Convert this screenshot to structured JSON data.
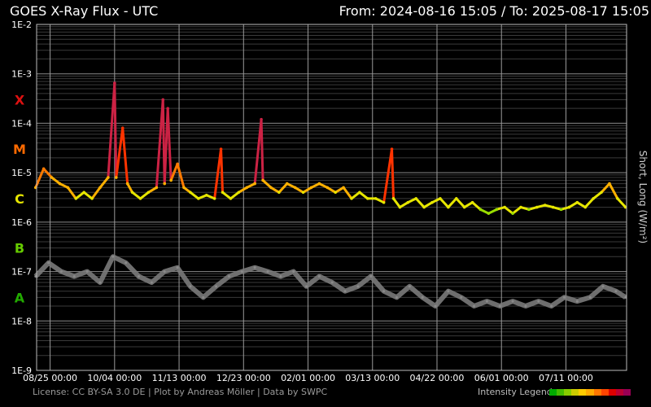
{
  "header": {
    "title": "GOES X-Ray Flux - UTC",
    "range": "From: 2024-08-16 15:05  /  To: 2025-08-17 15:05"
  },
  "footer": {
    "license": "License: CC BY-SA 3.0 DE | Plot by Andreas Möller | Data by SWPC",
    "legend_label": "Intensity Legend"
  },
  "legend_colors": [
    "#00aa00",
    "#44bb00",
    "#88cc00",
    "#cccc00",
    "#ffcc00",
    "#ffaa00",
    "#ff7700",
    "#ff4400",
    "#dd0000",
    "#bb0033",
    "#990055"
  ],
  "chart_data": {
    "type": "line",
    "title": "GOES X-Ray Flux - UTC",
    "ylabel": "Short, Long (W/m²)",
    "yscale": "log",
    "ylim": [
      1e-09,
      0.01
    ],
    "y_ticks": [
      "1E-2",
      "1E-3",
      "1E-4",
      "1E-5",
      "1E-6",
      "1E-7",
      "1E-8",
      "1E-9"
    ],
    "x_range": [
      "2024-08-16 15:05",
      "2025-08-17 15:05"
    ],
    "x_ticks": [
      {
        "date": "2024-08-25",
        "label": "08/25 00:00"
      },
      {
        "date": "2024-10-04",
        "label": "10/04 00:00"
      },
      {
        "date": "2024-11-13",
        "label": "11/13 00:00"
      },
      {
        "date": "2024-12-23",
        "label": "12/23 00:00"
      },
      {
        "date": "2025-02-01",
        "label": "02/01 00:00"
      },
      {
        "date": "2025-03-13",
        "label": "03/13 00:00"
      },
      {
        "date": "2025-04-22",
        "label": "04/22 00:00"
      },
      {
        "date": "2025-06-01",
        "label": "06/01 00:00"
      },
      {
        "date": "2025-07-11",
        "label": "07/11 00:00"
      }
    ],
    "flare_classes": [
      {
        "name": "X",
        "flux": 0.0003,
        "color": "#dd1111"
      },
      {
        "name": "M",
        "flux": 3e-05,
        "color": "#ff6a00"
      },
      {
        "name": "C",
        "flux": 3e-06,
        "color": "#e6e600"
      },
      {
        "name": "B",
        "flux": 3e-07,
        "color": "#66cc00"
      },
      {
        "name": "A",
        "flux": 3e-08,
        "color": "#22aa00"
      }
    ],
    "series": [
      {
        "name": "Long",
        "values": [
          [
            "2024-08-16",
            5e-06
          ],
          [
            "2024-08-21",
            1.2e-05
          ],
          [
            "2024-08-26",
            8e-06
          ],
          [
            "2024-08-31",
            6e-06
          ],
          [
            "2024-09-05",
            5e-06
          ],
          [
            "2024-09-10",
            3e-06
          ],
          [
            "2024-09-15",
            4e-06
          ],
          [
            "2024-09-20",
            3e-06
          ],
          [
            "2024-09-25",
            5e-06
          ],
          [
            "2024-09-30",
            8e-06
          ],
          [
            "2024-10-04",
            0.00065
          ],
          [
            "2024-10-05",
            8e-06
          ],
          [
            "2024-10-09",
            8e-05
          ],
          [
            "2024-10-12",
            6e-06
          ],
          [
            "2024-10-15",
            4e-06
          ],
          [
            "2024-10-20",
            3e-06
          ],
          [
            "2024-10-25",
            4e-06
          ],
          [
            "2024-10-30",
            5e-06
          ],
          [
            "2024-11-03",
            0.0003
          ],
          [
            "2024-11-04",
            6e-06
          ],
          [
            "2024-11-06",
            0.0002
          ],
          [
            "2024-11-08",
            7e-06
          ],
          [
            "2024-11-12",
            1.5e-05
          ],
          [
            "2024-11-16",
            5e-06
          ],
          [
            "2024-11-20",
            4e-06
          ],
          [
            "2024-11-25",
            3e-06
          ],
          [
            "2024-11-30",
            3.5e-06
          ],
          [
            "2024-12-05",
            3e-06
          ],
          [
            "2024-12-09",
            3e-05
          ],
          [
            "2024-12-10",
            4e-06
          ],
          [
            "2024-12-15",
            3e-06
          ],
          [
            "2024-12-20",
            4e-06
          ],
          [
            "2024-12-25",
            5e-06
          ],
          [
            "2024-12-30",
            6e-06
          ],
          [
            "2025-01-03",
            0.00012
          ],
          [
            "2025-01-04",
            7e-06
          ],
          [
            "2025-01-09",
            5e-06
          ],
          [
            "2025-01-14",
            4e-06
          ],
          [
            "2025-01-19",
            6e-06
          ],
          [
            "2025-01-24",
            5e-06
          ],
          [
            "2025-01-29",
            4e-06
          ],
          [
            "2025-02-03",
            5e-06
          ],
          [
            "2025-02-08",
            6e-06
          ],
          [
            "2025-02-13",
            5e-06
          ],
          [
            "2025-02-18",
            4e-06
          ],
          [
            "2025-02-23",
            5e-06
          ],
          [
            "2025-02-28",
            3e-06
          ],
          [
            "2025-03-05",
            4e-06
          ],
          [
            "2025-03-10",
            3e-06
          ],
          [
            "2025-03-15",
            3e-06
          ],
          [
            "2025-03-20",
            2.5e-06
          ],
          [
            "2025-03-25",
            3e-05
          ],
          [
            "2025-03-26",
            3e-06
          ],
          [
            "2025-03-30",
            2e-06
          ],
          [
            "2025-04-04",
            2.5e-06
          ],
          [
            "2025-04-09",
            3e-06
          ],
          [
            "2025-04-14",
            2e-06
          ],
          [
            "2025-04-19",
            2.5e-06
          ],
          [
            "2025-04-24",
            3e-06
          ],
          [
            "2025-04-29",
            2e-06
          ],
          [
            "2025-05-04",
            3e-06
          ],
          [
            "2025-05-09",
            2e-06
          ],
          [
            "2025-05-14",
            2.5e-06
          ],
          [
            "2025-05-19",
            1.8e-06
          ],
          [
            "2025-05-24",
            1.5e-06
          ],
          [
            "2025-05-29",
            1.8e-06
          ],
          [
            "2025-06-03",
            2e-06
          ],
          [
            "2025-06-08",
            1.5e-06
          ],
          [
            "2025-06-13",
            2e-06
          ],
          [
            "2025-06-18",
            1.8e-06
          ],
          [
            "2025-06-23",
            2e-06
          ],
          [
            "2025-06-28",
            2.2e-06
          ],
          [
            "2025-07-03",
            2e-06
          ],
          [
            "2025-07-08",
            1.8e-06
          ],
          [
            "2025-07-13",
            2e-06
          ],
          [
            "2025-07-18",
            2.5e-06
          ],
          [
            "2025-07-23",
            2e-06
          ],
          [
            "2025-07-28",
            3e-06
          ],
          [
            "2025-08-02",
            4e-06
          ],
          [
            "2025-08-07",
            6e-06
          ],
          [
            "2025-08-12",
            3e-06
          ],
          [
            "2025-08-17",
            2e-06
          ]
        ]
      },
      {
        "name": "Short",
        "values": [
          [
            "2024-08-16",
            8e-08
          ],
          [
            "2024-08-24",
            1.5e-07
          ],
          [
            "2024-09-01",
            1e-07
          ],
          [
            "2024-09-09",
            8e-08
          ],
          [
            "2024-09-17",
            1e-07
          ],
          [
            "2024-09-25",
            6e-08
          ],
          [
            "2024-10-03",
            2e-07
          ],
          [
            "2024-10-11",
            1.5e-07
          ],
          [
            "2024-10-19",
            8e-08
          ],
          [
            "2024-10-27",
            6e-08
          ],
          [
            "2024-11-04",
            1e-07
          ],
          [
            "2024-11-12",
            1.2e-07
          ],
          [
            "2024-11-20",
            5e-08
          ],
          [
            "2024-11-28",
            3e-08
          ],
          [
            "2024-12-06",
            5e-08
          ],
          [
            "2024-12-14",
            8e-08
          ],
          [
            "2024-12-22",
            1e-07
          ],
          [
            "2024-12-30",
            1.2e-07
          ],
          [
            "2025-01-07",
            1e-07
          ],
          [
            "2025-01-15",
            8e-08
          ],
          [
            "2025-01-23",
            1e-07
          ],
          [
            "2025-01-31",
            5e-08
          ],
          [
            "2025-02-08",
            8e-08
          ],
          [
            "2025-02-16",
            6e-08
          ],
          [
            "2025-02-24",
            4e-08
          ],
          [
            "2025-03-04",
            5e-08
          ],
          [
            "2025-03-12",
            8e-08
          ],
          [
            "2025-03-20",
            4e-08
          ],
          [
            "2025-03-28",
            3e-08
          ],
          [
            "2025-04-05",
            5e-08
          ],
          [
            "2025-04-13",
            3e-08
          ],
          [
            "2025-04-21",
            2e-08
          ],
          [
            "2025-04-29",
            4e-08
          ],
          [
            "2025-05-07",
            3e-08
          ],
          [
            "2025-05-15",
            2e-08
          ],
          [
            "2025-05-23",
            2.5e-08
          ],
          [
            "2025-05-31",
            2e-08
          ],
          [
            "2025-06-08",
            2.5e-08
          ],
          [
            "2025-06-16",
            2e-08
          ],
          [
            "2025-06-24",
            2.5e-08
          ],
          [
            "2025-07-02",
            2e-08
          ],
          [
            "2025-07-10",
            3e-08
          ],
          [
            "2025-07-18",
            2.5e-08
          ],
          [
            "2025-07-26",
            3e-08
          ],
          [
            "2025-08-03",
            5e-08
          ],
          [
            "2025-08-11",
            4e-08
          ],
          [
            "2025-08-17",
            3e-08
          ]
        ]
      }
    ]
  }
}
